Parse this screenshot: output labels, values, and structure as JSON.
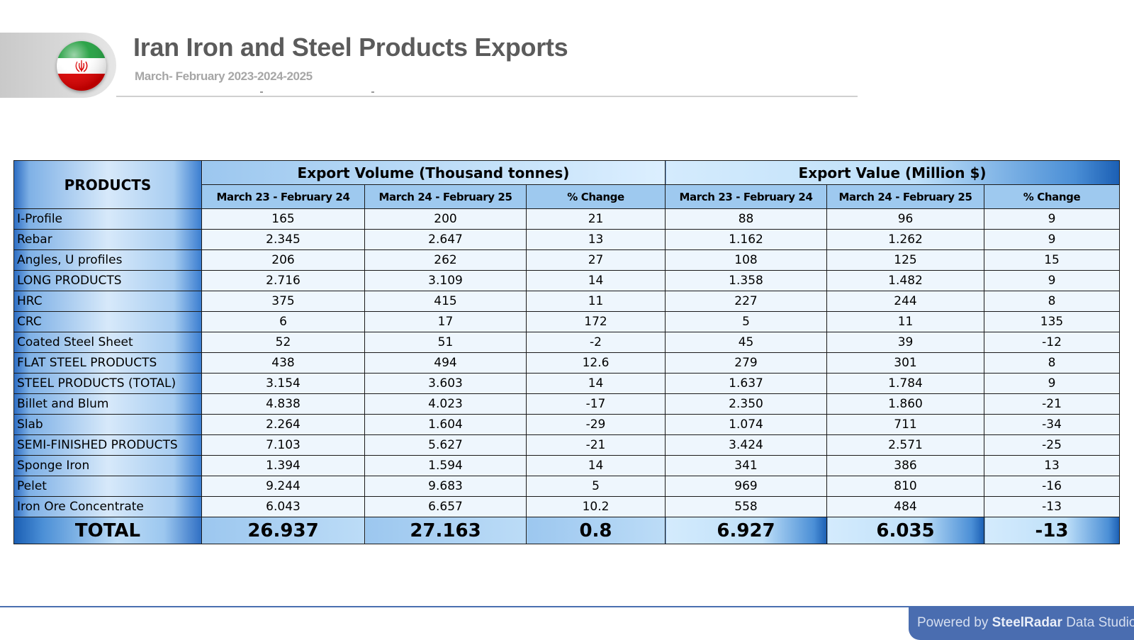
{
  "header": {
    "title": "Iran Iron and Steel Products Exports",
    "subtitle": "March- February 2023-2024-2025",
    "flag_icon": "iran-flag-icon"
  },
  "table": {
    "products_header": "PRODUCTS",
    "volume_group_header": "Export Volume (Thousand tonnes)",
    "value_group_header": "Export Value (Million $)",
    "sub_headers": [
      "March 23 - February 24",
      "March 24 - February 25",
      "% Change",
      "March 23 - February 24",
      "March 24 - February 25",
      "% Change"
    ],
    "rows": [
      {
        "product": "I-Profile",
        "v1": "165",
        "v2": "200",
        "vc": "21",
        "x1": "88",
        "x2": "96",
        "xc": "9"
      },
      {
        "product": "Rebar",
        "v1": "2.345",
        "v2": "2.647",
        "vc": "13",
        "x1": "1.162",
        "x2": "1.262",
        "xc": "9"
      },
      {
        "product": "Angles, U profiles",
        "v1": "206",
        "v2": "262",
        "vc": "27",
        "x1": "108",
        "x2": "125",
        "xc": "15"
      },
      {
        "product": "LONG PRODUCTS",
        "v1": "2.716",
        "v2": "3.109",
        "vc": "14",
        "x1": "1.358",
        "x2": "1.482",
        "xc": "9"
      },
      {
        "product": "HRC",
        "v1": "375",
        "v2": "415",
        "vc": "11",
        "x1": "227",
        "x2": "244",
        "xc": "8"
      },
      {
        "product": "CRC",
        "v1": "6",
        "v2": "17",
        "vc": "172",
        "x1": "5",
        "x2": "11",
        "xc": "135"
      },
      {
        "product": "Coated Steel Sheet",
        "v1": "52",
        "v2": "51",
        "vc": "-2",
        "x1": "45",
        "x2": "39",
        "xc": "-12"
      },
      {
        "product": "FLAT STEEL PRODUCTS",
        "v1": "438",
        "v2": "494",
        "vc": "12.6",
        "x1": "279",
        "x2": "301",
        "xc": "8"
      },
      {
        "product": "STEEL PRODUCTS (TOTAL)",
        "v1": "3.154",
        "v2": "3.603",
        "vc": "14",
        "x1": "1.637",
        "x2": "1.784",
        "xc": "9"
      },
      {
        "product": "Billet and Blum",
        "v1": "4.838",
        "v2": "4.023",
        "vc": "-17",
        "x1": "2.350",
        "x2": "1.860",
        "xc": "-21"
      },
      {
        "product": "Slab",
        "v1": "2.264",
        "v2": "1.604",
        "vc": "-29",
        "x1": "1.074",
        "x2": "711",
        "xc": "-34"
      },
      {
        "product": "SEMI-FINISHED PRODUCTS",
        "v1": "7.103",
        "v2": "5.627",
        "vc": "-21",
        "x1": "3.424",
        "x2": "2.571",
        "xc": "-25"
      },
      {
        "product": "Sponge Iron",
        "v1": "1.394",
        "v2": "1.594",
        "vc": "14",
        "x1": "341",
        "x2": "386",
        "xc": "13"
      },
      {
        "product": "Pelet",
        "v1": "9.244",
        "v2": "9.683",
        "vc": "5",
        "x1": "969",
        "x2": "810",
        "xc": "-16"
      },
      {
        "product": "Iron Ore Concentrate",
        "v1": "6.043",
        "v2": "6.657",
        "vc": "10.2",
        "x1": "558",
        "x2": "484",
        "xc": "-13"
      }
    ],
    "total": {
      "product": "TOTAL",
      "v1": "26.937",
      "v2": "27.163",
      "vc": "0.8",
      "x1": "6.927",
      "x2": "6.035",
      "xc": "-13"
    }
  },
  "footer": {
    "prefix": "Powered by",
    "brand": "SteelRadar",
    "suffix": "Data Studio"
  },
  "colors": {
    "title": "#5b5b5b",
    "subtitle": "#a6a6a6",
    "header_blue": "#9ec9ef",
    "cell_bg": "#eef6fd",
    "footer_bg": "#4a6db0"
  }
}
